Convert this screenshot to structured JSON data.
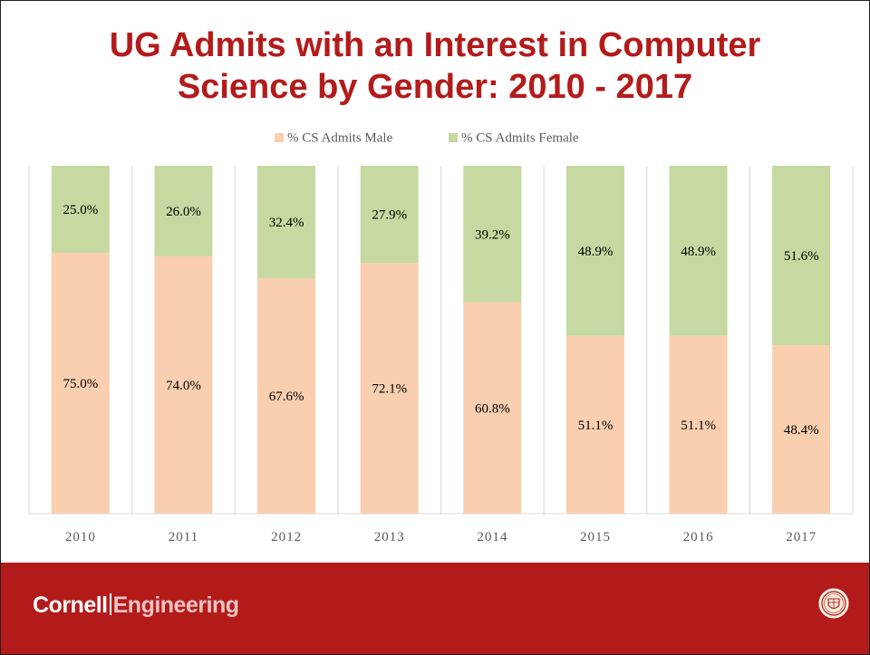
{
  "slide": {
    "title_line1": "UG Admits with an Interest in Computer",
    "title_line2": "Science by Gender: 2010 - 2017"
  },
  "footer": {
    "brand_left": "Cornell",
    "brand_right": "Engineering",
    "seal_icon": "cornell-seal-icon"
  },
  "colors": {
    "title": "#b31b1b",
    "male": "#f9cfb0",
    "female": "#c6d9a0",
    "footer": "#b31b1b"
  },
  "chart_data": {
    "type": "bar",
    "stacked": true,
    "percent": true,
    "categories": [
      "2010",
      "2011",
      "2012",
      "2013",
      "2014",
      "2015",
      "2016",
      "2017"
    ],
    "series": [
      {
        "name": "% CS Admits Male",
        "values": [
          75.0,
          74.0,
          67.6,
          72.1,
          60.8,
          51.1,
          51.1,
          48.4
        ],
        "labels": [
          "75.0%",
          "74.0%",
          "67.6%",
          "72.1%",
          "60.8%",
          "51.1%",
          "51.1%",
          "48.4%"
        ]
      },
      {
        "name": "% CS Admits Female",
        "values": [
          25.0,
          26.0,
          32.4,
          27.9,
          39.2,
          48.9,
          48.9,
          51.6
        ],
        "labels": [
          "25.0%",
          "26.0%",
          "32.4%",
          "27.9%",
          "39.2%",
          "48.9%",
          "48.9%",
          "51.6%"
        ]
      }
    ],
    "ylim": [
      0,
      100
    ],
    "legend": "top-center",
    "grid": "vertical-category-separators"
  }
}
